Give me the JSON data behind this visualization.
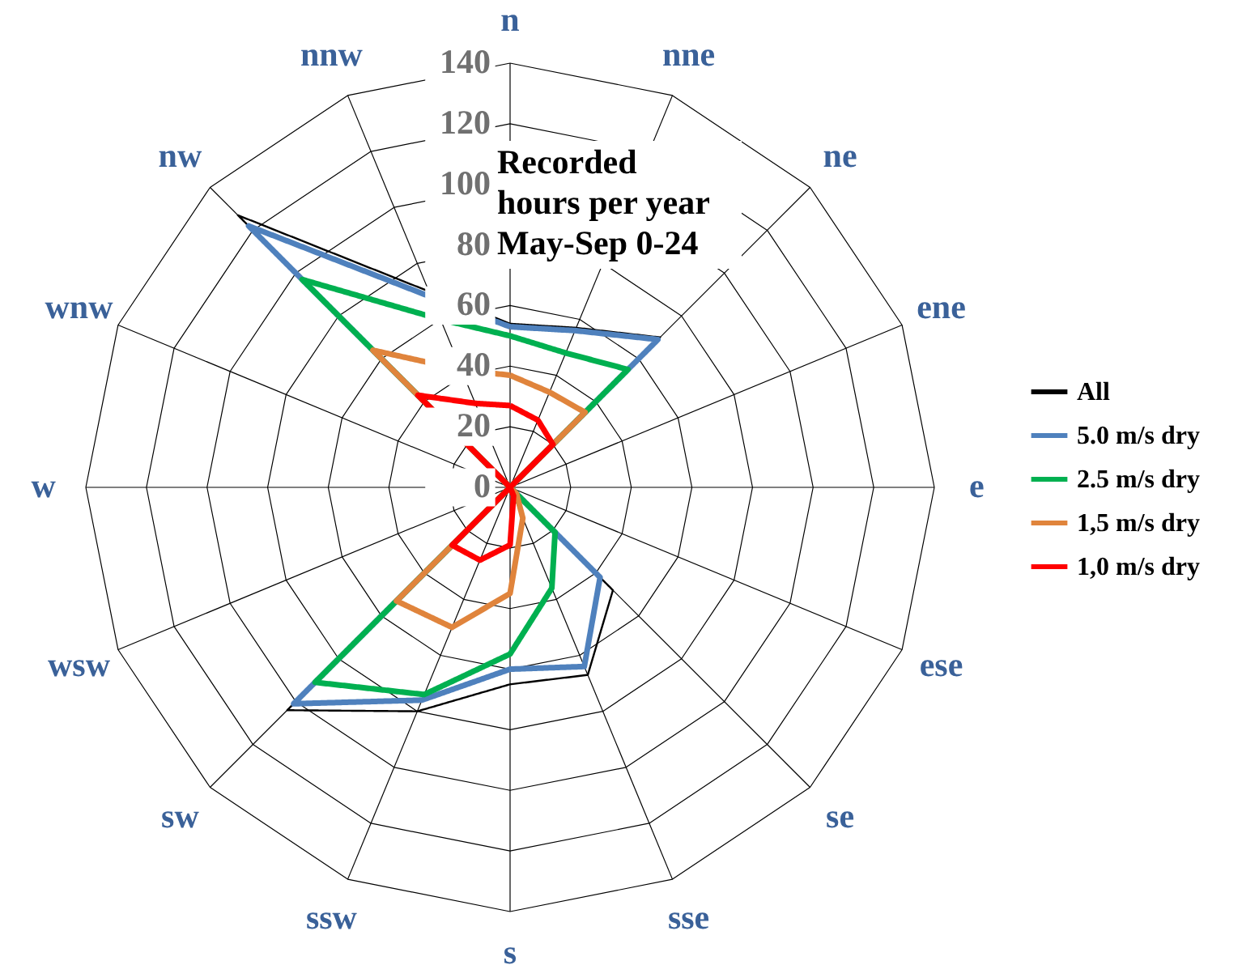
{
  "chart_data": {
    "type": "radar",
    "title": "Recorded\nhours per year\nMay-Sep 0-24",
    "categories": [
      "n",
      "nne",
      "ne",
      "ene",
      "e",
      "ese",
      "se",
      "sse",
      "s",
      "ssw",
      "sw",
      "wsw",
      "w",
      "wnw",
      "nw",
      "nnw"
    ],
    "ylim": [
      0,
      140
    ],
    "yticks": [
      0,
      20,
      40,
      60,
      80,
      100,
      120,
      140
    ],
    "grid": true,
    "legend": "right",
    "marker": "none",
    "line_style": "solid",
    "series": [
      {
        "name": "All",
        "color": "#000000",
        "values": [
          54,
          57,
          70,
          0,
          0,
          0,
          48,
          67,
          65,
          80,
          104,
          0,
          0,
          0,
          127,
          70
        ]
      },
      {
        "name": "5.0 m/s dry",
        "color": "#4f81bd",
        "values": [
          53,
          56,
          69,
          0,
          0,
          0,
          42,
          64,
          60,
          76,
          101,
          0,
          0,
          0,
          122,
          68
        ]
      },
      {
        "name": "2.5 m/s dry",
        "color": "#00b050",
        "values": [
          50,
          48,
          55,
          0,
          0,
          0,
          21,
          36,
          55,
          74,
          91,
          0,
          0,
          0,
          97,
          60
        ]
      },
      {
        "name": "1,5 m/s dry",
        "color": "#e0843c",
        "values": [
          37,
          34,
          35,
          0,
          0,
          0,
          3,
          11,
          35,
          50,
          53,
          0,
          0,
          0,
          64,
          42
        ]
      },
      {
        "name": "1,0 m/s dry",
        "color": "#ff0000",
        "values": [
          27,
          24,
          20,
          0,
          0,
          0,
          0,
          3,
          19,
          26,
          27,
          0,
          0,
          0,
          43,
          30
        ]
      }
    ]
  }
}
